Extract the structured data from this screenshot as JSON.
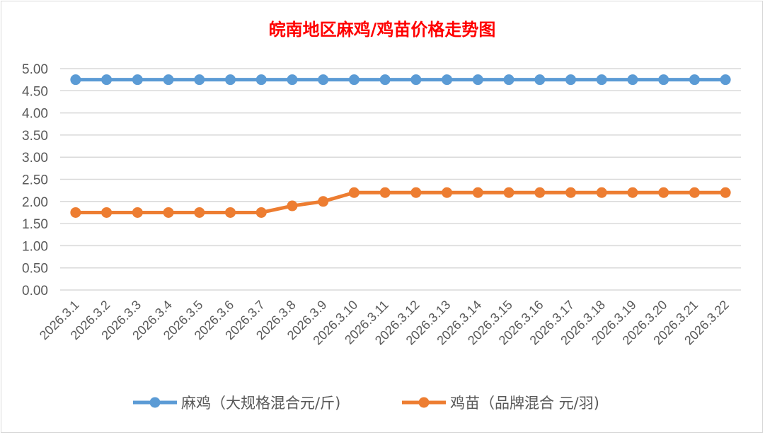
{
  "chart_data": {
    "type": "line",
    "title": "皖南地区麻鸡/鸡苗价格走势图",
    "title_color": "#ff0000",
    "categories": [
      "2026.3.1",
      "2026.3.2",
      "2026.3.3",
      "2026.3.4",
      "2026.3.5",
      "2026.3.6",
      "2026.3.7",
      "2026.3.8",
      "2026.3.9",
      "2026.3.10",
      "2026.3.11",
      "2026.3.12",
      "2026.3.13",
      "2026.3.14",
      "2026.3.15",
      "2026.3.16",
      "2026.3.17",
      "2026.3.18",
      "2026.3.19",
      "2026.3.20",
      "2026.3.21",
      "2026.3.22"
    ],
    "series": [
      {
        "name": "麻鸡（大规格混合元/斤)",
        "color": "#5b9bd5",
        "values": [
          4.75,
          4.75,
          4.75,
          4.75,
          4.75,
          4.75,
          4.75,
          4.75,
          4.75,
          4.75,
          4.75,
          4.75,
          4.75,
          4.75,
          4.75,
          4.75,
          4.75,
          4.75,
          4.75,
          4.75,
          4.75,
          4.75
        ]
      },
      {
        "name": "鸡苗（品牌混合 元/羽)",
        "color": "#ed7d31",
        "values": [
          1.75,
          1.75,
          1.75,
          1.75,
          1.75,
          1.75,
          1.75,
          1.9,
          2.0,
          2.2,
          2.2,
          2.2,
          2.2,
          2.2,
          2.2,
          2.2,
          2.2,
          2.2,
          2.2,
          2.2,
          2.2,
          2.2
        ]
      }
    ],
    "ylim": [
      0,
      5
    ],
    "yticks": [
      "0.00",
      "0.50",
      "1.00",
      "1.50",
      "2.00",
      "2.50",
      "3.00",
      "3.50",
      "4.00",
      "4.50",
      "5.00"
    ],
    "xlabel": "",
    "ylabel": "",
    "grid": true,
    "legend_position": "bottom"
  }
}
